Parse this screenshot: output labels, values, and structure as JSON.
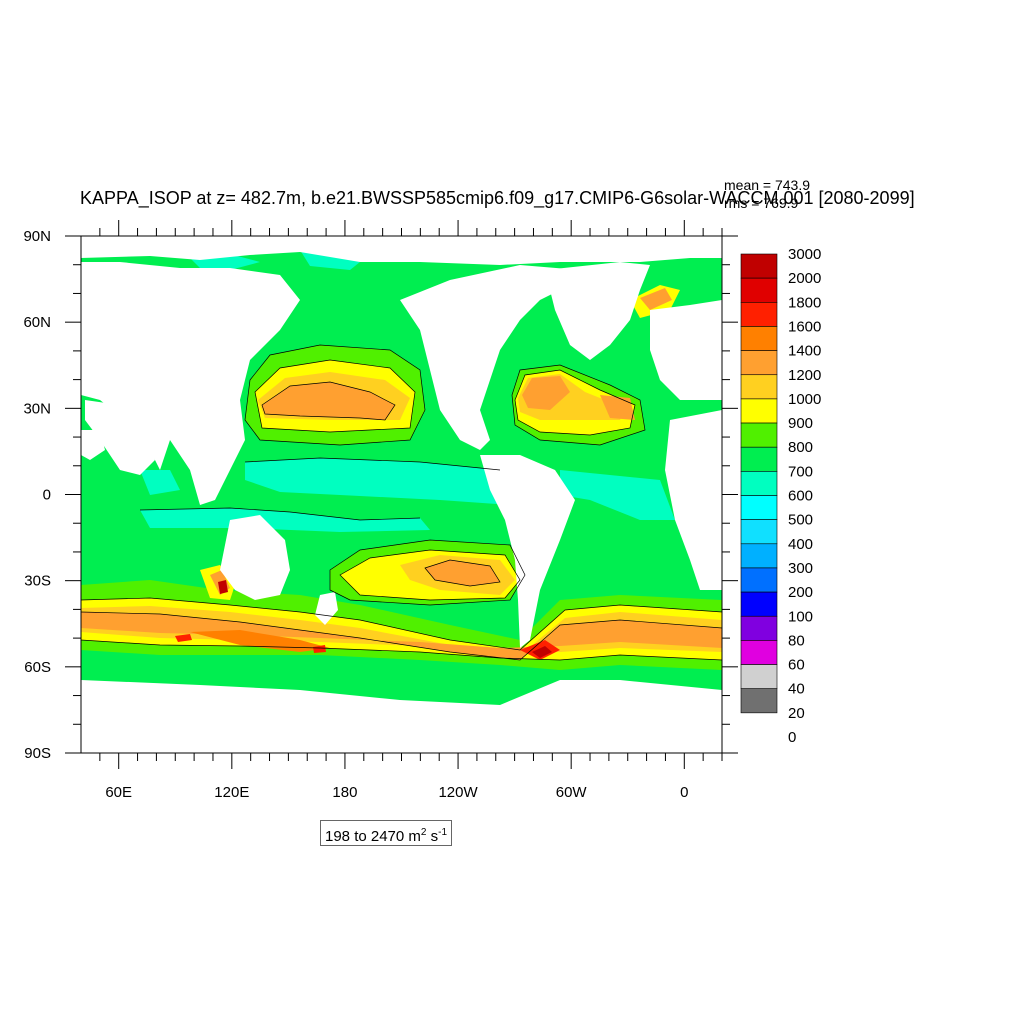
{
  "title": "KAPPA_ISOP at z= 482.7m, b.e21.BWSSP585cmip6.f09_g17.CMIP6-G6solar-WACCM.001 [2080-2099]",
  "stats": {
    "mean": "mean = 743.9",
    "rms": "rms = 769.9"
  },
  "range": {
    "prefix": "198 to 2470 m",
    "sup1": "2",
    "mid": " s",
    "sup2": "-1"
  },
  "axes": {
    "lat_ticks": [
      {
        "label": "90N",
        "lat": 90
      },
      {
        "label": "60N",
        "lat": 60
      },
      {
        "label": "30N",
        "lat": 30
      },
      {
        "label": "0",
        "lat": 0
      },
      {
        "label": "30S",
        "lat": -30
      },
      {
        "label": "60S",
        "lat": -60
      },
      {
        "label": "90S",
        "lat": -90
      }
    ],
    "lon_ticks": [
      {
        "label": "60E",
        "lon": 60
      },
      {
        "label": "120E",
        "lon": 120
      },
      {
        "label": "180",
        "lon": 180
      },
      {
        "label": "120W",
        "lon": 240
      },
      {
        "label": "60W",
        "lon": 300
      },
      {
        "label": "0",
        "lon": 360
      }
    ],
    "lon_range": [
      40,
      380
    ],
    "lat_range": [
      -90,
      90
    ]
  },
  "colorbar": {
    "levels": [
      "3000",
      "2000",
      "1800",
      "1600",
      "1400",
      "1200",
      "1000",
      "900",
      "800",
      "700",
      "600",
      "500",
      "400",
      "300",
      "200",
      "100",
      "80",
      "60",
      "40",
      "20",
      "0"
    ],
    "colors": [
      "#c00000",
      "#e00000",
      "#ff2000",
      "#ff8000",
      "#ffa030",
      "#ffd020",
      "#ffff00",
      "#50f000",
      "#00ee50",
      "#00ffc0",
      "#00ffff",
      "#10e0ff",
      "#00b0ff",
      "#0070ff",
      "#0000ff",
      "#8000e0",
      "#e000e0",
      "#d0d0d0",
      "#707070"
    ]
  },
  "colors": {
    "c600_700": "#00ee50",
    "c500_600": "#00ffc0",
    "c700_800": "#50f000",
    "c800_900": "#ffff00",
    "c900_1000": "#ffd020",
    "c1000_1200": "#ffa030",
    "c1200_1400": "#ffa030",
    "c1600_1800": "#ff2000",
    "c2000_3000": "#c00000",
    "land": "#ffffff"
  }
}
